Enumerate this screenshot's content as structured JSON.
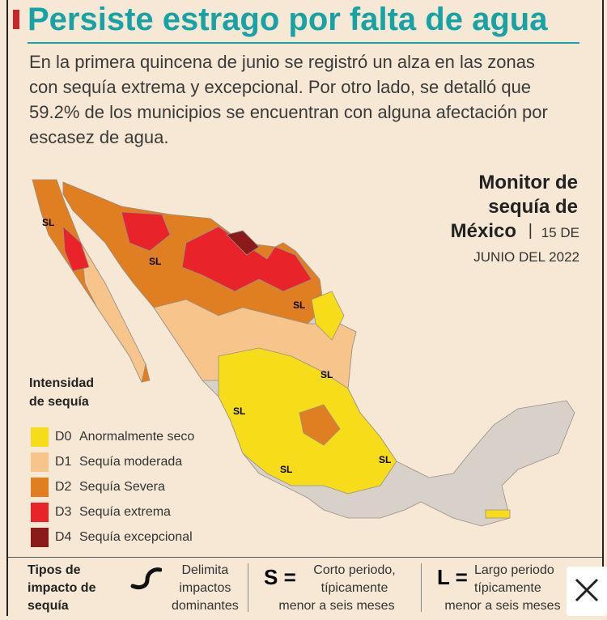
{
  "header": {
    "title": "Persiste estrago por falta de agua"
  },
  "intro": {
    "lines": [
      "En la primera quincena de junio se registró un alza en las zonas",
      "con sequía extrema y excepcional. Por otro lado, se detalló que",
      "59.2% de los municipios se encuentran con alguna afectación por",
      "escasez de agua."
    ]
  },
  "map": {
    "title_lines": [
      "Monitor de",
      "sequía de",
      "México"
    ],
    "separator": "|",
    "date_lines": [
      "15 DE",
      "JUNIO DEL 2022"
    ],
    "labels": [
      "SL",
      "SL",
      "SL",
      "SL",
      "SL",
      "SL",
      "SL"
    ]
  },
  "legend": {
    "title_lines": [
      "Intensidad",
      "de sequía"
    ],
    "items": [
      {
        "code": "D0",
        "label": "Anormalmente seco"
      },
      {
        "code": "D1",
        "label": "Sequía moderada"
      },
      {
        "code": "D2",
        "label": "Sequía Severa"
      },
      {
        "code": "D3",
        "label": "Sequía extrema"
      },
      {
        "code": "D4",
        "label": "Sequía excepcional"
      }
    ]
  },
  "impact": {
    "title_lines": [
      "Tipos de",
      "impacto de",
      "sequía"
    ],
    "delimit_lines": [
      "Delimita",
      "impactos",
      "dominantes"
    ],
    "short_symbol": "S =",
    "short_lines": [
      "Corto periodo,",
      "típicamente",
      "menor a seis meses"
    ],
    "long_symbol": "L =",
    "long_lines": [
      "Largo periodo",
      "típicamente",
      "menor a seis meses"
    ]
  }
}
